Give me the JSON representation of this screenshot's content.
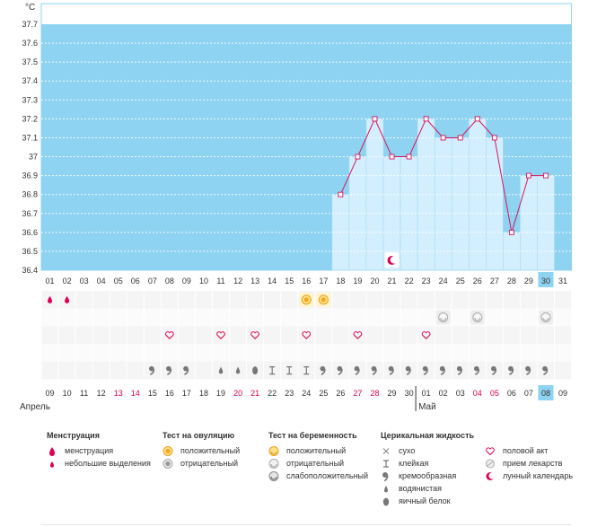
{
  "chart_data": {
    "type": "bar",
    "ylabel": "°C",
    "ylim": [
      36.4,
      37.8
    ],
    "yticks": [
      "37.7",
      "37.6",
      "37.5",
      "37.4",
      "37.3",
      "37.2",
      "37.1",
      "37",
      "36.9",
      "36.8",
      "36.7",
      "36.6",
      "36.5",
      "36.4"
    ],
    "cycle_days": [
      "01",
      "02",
      "03",
      "04",
      "05",
      "06",
      "07",
      "08",
      "09",
      "10",
      "11",
      "12",
      "13",
      "14",
      "15",
      "16",
      "17",
      "18",
      "19",
      "20",
      "21",
      "22",
      "23",
      "24",
      "25",
      "26",
      "27",
      "28",
      "29",
      "30",
      "31"
    ],
    "current_day_index": 29,
    "temperatures": [
      null,
      null,
      null,
      null,
      null,
      null,
      null,
      null,
      null,
      null,
      null,
      null,
      null,
      null,
      null,
      null,
      null,
      36.8,
      37.0,
      37.2,
      37.0,
      37.0,
      37.2,
      37.1,
      37.1,
      37.2,
      37.1,
      36.6,
      36.9,
      36.9,
      null
    ],
    "dates": [
      "09",
      "10",
      "11",
      "12",
      "13",
      "14",
      "15",
      "16",
      "17",
      "18",
      "19",
      "20",
      "21",
      "22",
      "23",
      "24",
      "25",
      "26",
      "27",
      "28",
      "29",
      "30",
      "01",
      "02",
      "03",
      "04",
      "05",
      "06",
      "07",
      "08",
      "09"
    ],
    "weekend_indices": [
      4,
      5,
      11,
      12,
      18,
      19,
      25,
      26
    ],
    "month_labels": [
      {
        "label": "Апрель",
        "index": 0
      },
      {
        "label": "Май",
        "index": 22
      }
    ],
    "menstruation_days": [
      0,
      1
    ],
    "ovulation_positive_days": [
      15,
      16
    ],
    "pregnancy_negative_days": [
      23,
      25,
      29
    ],
    "intercourse_days": [
      7,
      10,
      12,
      15,
      18,
      22
    ],
    "lunar_day": 20,
    "cervical": [
      "",
      "",
      "",
      "",
      "",
      "",
      "creamy",
      "creamy",
      "creamy",
      "",
      "watery",
      "watery",
      "eggwhite",
      "sticky",
      "sticky",
      "sticky",
      "creamy",
      "creamy",
      "creamy",
      "creamy",
      "creamy",
      "creamy",
      "creamy",
      "creamy",
      "creamy",
      "creamy",
      "creamy",
      "creamy",
      "creamy",
      "creamy",
      ""
    ]
  },
  "colors": {
    "sky": "#8ed3f1",
    "bar": "#d3efff",
    "line": "#d6135a",
    "accent": "#dd0055",
    "today": "#8ed3f1"
  },
  "legend": {
    "menstruation": {
      "title": "Менструация",
      "items": [
        "менструация",
        "небольшие выделения"
      ]
    },
    "ovulation": {
      "title": "Тест на овуляцию",
      "items": [
        "положительный",
        "отрицательный"
      ]
    },
    "pregnancy": {
      "title": "Тест на беременность",
      "items": [
        "положительный",
        "отрицательный",
        "слабоположительный"
      ]
    },
    "cervical": {
      "title": "Церикальная жидкость",
      "items": [
        "сухо",
        "клейкая",
        "кремообразная",
        "водянистая",
        "яичный белок"
      ]
    },
    "other": {
      "items": [
        "половой акт",
        "прием лекарств",
        "лунный календарь"
      ]
    }
  }
}
